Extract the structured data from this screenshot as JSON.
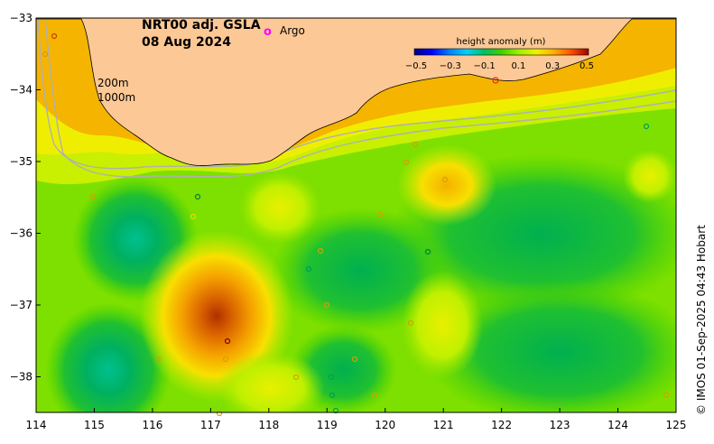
{
  "title": {
    "line1": "NRT00 adj. GSLA",
    "line2": "08 Aug 2024"
  },
  "legend": {
    "argo_symbol": "o",
    "argo_label": "Argo"
  },
  "contours": {
    "label_200": "200m",
    "label_1000": "1000m"
  },
  "colorbar": {
    "title": "height anomaly (m)",
    "ticks": [
      "−0.5",
      "−0.3",
      "−0.1",
      "0.1",
      "0.3",
      "0.5"
    ],
    "colors": [
      "#00007f",
      "#0000ff",
      "#0066ff",
      "#00ccff",
      "#00cc99",
      "#00b33c",
      "#33cc00",
      "#66e000",
      "#a6f000",
      "#e6f000",
      "#ffd700",
      "#ffaa00",
      "#ff7700",
      "#e03c00",
      "#a00000"
    ]
  },
  "x_ticks": [
    "114",
    "115",
    "116",
    "117",
    "118",
    "119",
    "120",
    "121",
    "122",
    "123",
    "124",
    "125"
  ],
  "y_ticks": [
    "−33",
    "−34",
    "−35",
    "−36",
    "−37",
    "−38"
  ],
  "credit": "© IMOS 01-Sep-2025 04:43 Hobart",
  "colors": {
    "land": "#fcc895",
    "argo": "#ff00ff"
  }
}
